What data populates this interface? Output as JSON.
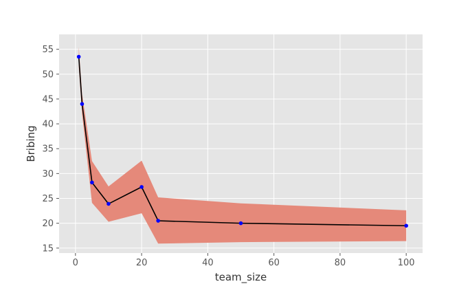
{
  "chart_data": {
    "type": "line",
    "title": "",
    "xlabel": "team_size",
    "ylabel": "Bribing",
    "xlim": [
      -4.95,
      104.95
    ],
    "ylim": [
      14,
      58
    ],
    "xticks": [
      0,
      20,
      40,
      60,
      80,
      100
    ],
    "yticks": [
      15,
      20,
      25,
      30,
      35,
      40,
      45,
      50,
      55
    ],
    "grid": true,
    "series": [
      {
        "x": [
          1,
          2,
          5,
          10,
          20,
          25,
          50,
          100
        ],
        "values": [
          53.5,
          44.0,
          28.2,
          23.9,
          27.3,
          20.5,
          20.0,
          19.5
        ],
        "lower": [
          51.5,
          42.0,
          24.1,
          20.3,
          22.0,
          15.9,
          16.2,
          16.4
        ],
        "upper": [
          55.5,
          46.0,
          32.5,
          27.4,
          32.6,
          25.2,
          24.0,
          22.6
        ],
        "line_color": "#000000",
        "marker_color": "#0000ff",
        "band_color": "#e5897a"
      }
    ],
    "colors": {
      "plot_background": "#e5e5e5",
      "grid": "#ffffff"
    }
  }
}
